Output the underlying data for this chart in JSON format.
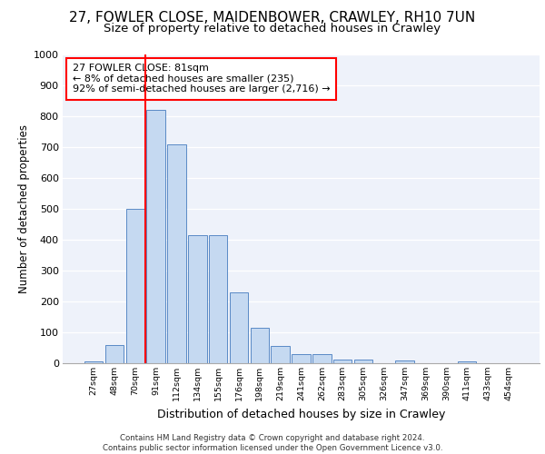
{
  "title1": "27, FOWLER CLOSE, MAIDENBOWER, CRAWLEY, RH10 7UN",
  "title2": "Size of property relative to detached houses in Crawley",
  "xlabel": "Distribution of detached houses by size in Crawley",
  "ylabel": "Number of detached properties",
  "categories": [
    "27sqm",
    "48sqm",
    "70sqm",
    "91sqm",
    "112sqm",
    "134sqm",
    "155sqm",
    "176sqm",
    "198sqm",
    "219sqm",
    "241sqm",
    "262sqm",
    "283sqm",
    "305sqm",
    "326sqm",
    "347sqm",
    "369sqm",
    "390sqm",
    "411sqm",
    "433sqm",
    "454sqm"
  ],
  "values": [
    5,
    60,
    500,
    820,
    710,
    415,
    415,
    230,
    115,
    55,
    30,
    30,
    13,
    13,
    0,
    10,
    0,
    0,
    5,
    0,
    0
  ],
  "bar_color": "#c5d9f1",
  "bar_edge_color": "#5a8ac6",
  "vline_x": 3.0,
  "vline_color": "red",
  "annotation_text": "27 FOWLER CLOSE: 81sqm\n← 8% of detached houses are smaller (235)\n92% of semi-detached houses are larger (2,716) →",
  "annotation_box_color": "white",
  "annotation_box_edge": "red",
  "ylim": [
    0,
    1000
  ],
  "yticks": [
    0,
    100,
    200,
    300,
    400,
    500,
    600,
    700,
    800,
    900,
    1000
  ],
  "footer1": "Contains HM Land Registry data © Crown copyright and database right 2024.",
  "footer2": "Contains public sector information licensed under the Open Government Licence v3.0.",
  "bg_color": "#eef2fa",
  "title1_fontsize": 11,
  "title2_fontsize": 9.5,
  "xlabel_fontsize": 9,
  "ylabel_fontsize": 8.5,
  "annotation_fontsize": 8
}
